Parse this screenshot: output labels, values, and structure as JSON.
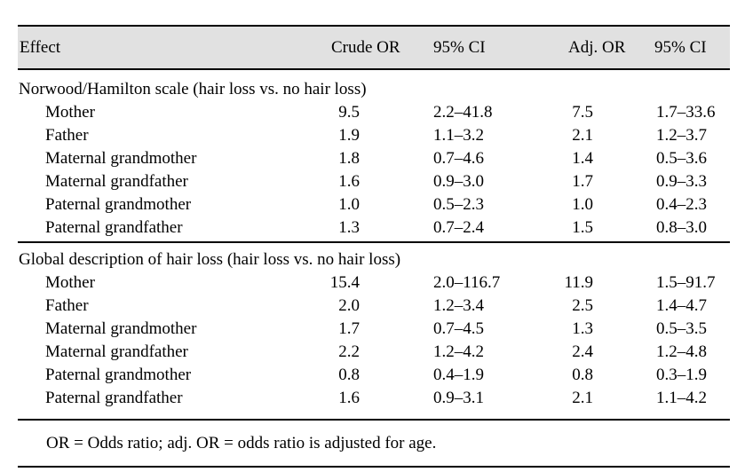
{
  "table": {
    "columns": [
      "Effect",
      "Crude OR",
      "95% CI",
      "Adj. OR",
      "95% CI"
    ],
    "sections": [
      {
        "title": "Norwood/Hamilton scale (hair loss vs. no hair loss)",
        "rows": [
          {
            "effect": "Mother",
            "crude_or": "9.5",
            "crude_ci": "2.2–41.8",
            "adj_or": "7.5",
            "adj_ci": "1.7–33.6"
          },
          {
            "effect": "Father",
            "crude_or": "1.9",
            "crude_ci": "1.1–3.2",
            "adj_or": "2.1",
            "adj_ci": "1.2–3.7"
          },
          {
            "effect": "Maternal grandmother",
            "crude_or": "1.8",
            "crude_ci": "0.7–4.6",
            "adj_or": "1.4",
            "adj_ci": "0.5–3.6"
          },
          {
            "effect": "Maternal grandfather",
            "crude_or": "1.6",
            "crude_ci": "0.9–3.0",
            "adj_or": "1.7",
            "adj_ci": "0.9–3.3"
          },
          {
            "effect": "Paternal grandmother",
            "crude_or": "1.0",
            "crude_ci": "0.5–2.3",
            "adj_or": "1.0",
            "adj_ci": "0.4–2.3"
          },
          {
            "effect": "Paternal grandfather",
            "crude_or": "1.3",
            "crude_ci": "0.7–2.4",
            "adj_or": "1.5",
            "adj_ci": "0.8–3.0"
          }
        ]
      },
      {
        "title": "Global description of hair loss (hair loss vs. no hair loss)",
        "rows": [
          {
            "effect": "Mother",
            "crude_or": "15.4",
            "crude_ci": "2.0–116.7",
            "adj_or": "11.9",
            "adj_ci": "1.5–91.7"
          },
          {
            "effect": "Father",
            "crude_or": "2.0",
            "crude_ci": "1.2–3.4",
            "adj_or": "2.5",
            "adj_ci": "1.4–4.7"
          },
          {
            "effect": "Maternal grandmother",
            "crude_or": "1.7",
            "crude_ci": "0.7–4.5",
            "adj_or": "1.3",
            "adj_ci": "0.5–3.5"
          },
          {
            "effect": "Maternal grandfather",
            "crude_or": "2.2",
            "crude_ci": "1.2–4.2",
            "adj_or": "2.4",
            "adj_ci": "1.2–4.8"
          },
          {
            "effect": "Paternal grandmother",
            "crude_or": "0.8",
            "crude_ci": "0.4–1.9",
            "adj_or": "0.8",
            "adj_ci": "0.3–1.9"
          },
          {
            "effect": "Paternal grandfather",
            "crude_or": "1.6",
            "crude_ci": "0.9–3.1",
            "adj_or": "2.1",
            "adj_ci": "1.1–4.2"
          }
        ]
      }
    ],
    "footnote": "OR = Odds ratio; adj. OR = odds ratio is adjusted for age.",
    "colors": {
      "header_band": "#e1e1e1",
      "rule": "#000000",
      "text": "#000000"
    }
  }
}
